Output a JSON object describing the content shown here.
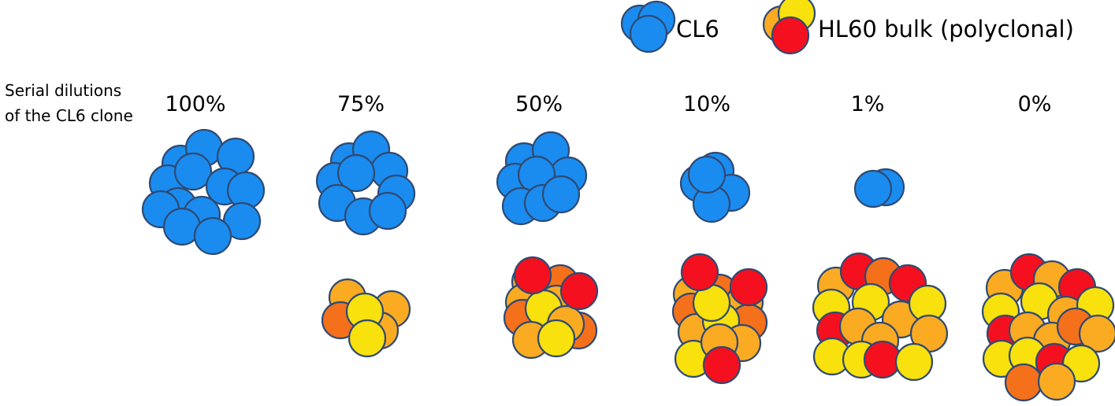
{
  "row_title": {
    "line1": "Serial dilutions",
    "line2": "of the CL6 clone"
  },
  "legend": [
    {
      "label": "CL6",
      "icon": "blue-cell-cluster-icon",
      "colors": [
        "#1a8cf0"
      ]
    },
    {
      "label": "HL60 bulk (polyclonal)",
      "icon": "mixed-cell-cluster-icon",
      "colors": [
        "#f8e10c",
        "#fbab22",
        "#f5701b",
        "#f5101f"
      ]
    }
  ],
  "dilutions": [
    {
      "label": "100%",
      "cl6_percent": 100
    },
    {
      "label": "75%",
      "cl6_percent": 75
    },
    {
      "label": "50%",
      "cl6_percent": 50
    },
    {
      "label": "10%",
      "cl6_percent": 10
    },
    {
      "label": "1%",
      "cl6_percent": 1
    },
    {
      "label": "0%",
      "cl6_percent": 0
    }
  ],
  "colors": {
    "cl6": "#1a8cf0",
    "yellow": "#f8e10c",
    "light_orange": "#fbab22",
    "dark_orange": "#f5701b",
    "red": "#f5101f",
    "outline": "#2f4a73"
  }
}
